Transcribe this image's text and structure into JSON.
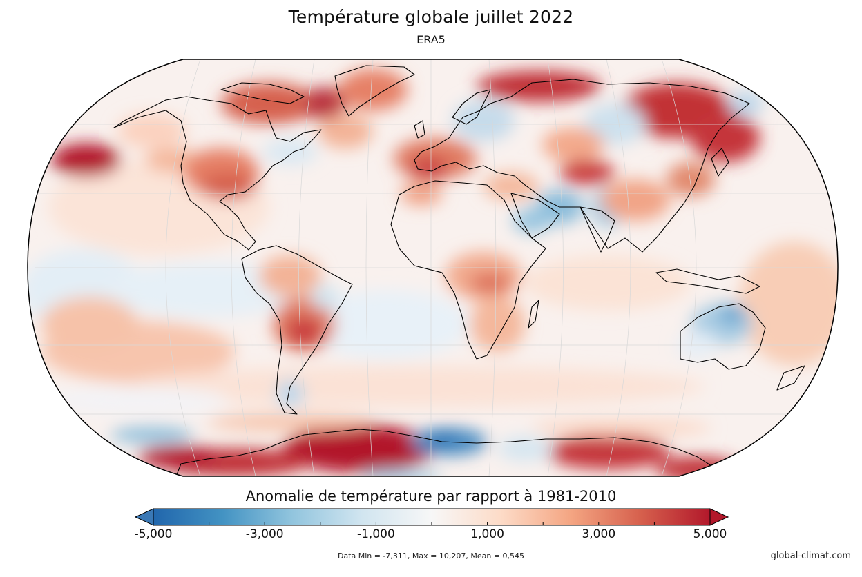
{
  "title": "Température globale juillet 2022",
  "subtitle": "ERA5",
  "map": {
    "projection": "Robinson",
    "colormap": [
      "#2166ac",
      "#4393c3",
      "#92c5de",
      "#d1e5f0",
      "#f7f7f7",
      "#fddbc7",
      "#f4a582",
      "#d6604d",
      "#b2182b"
    ],
    "ocean_base": "#f7f7f7",
    "coast_color": "#000000"
  },
  "colorbar": {
    "title": "Anomalie de température par rapport à 1981-2010",
    "range": [
      -5,
      5
    ],
    "tick_labels": [
      {
        "value": -5,
        "label": "-5,000"
      },
      {
        "value": -3,
        "label": "-3,000"
      },
      {
        "value": -1,
        "label": "-1,000"
      },
      {
        "value": 1,
        "label": "1,000"
      },
      {
        "value": 3,
        "label": "3,000"
      },
      {
        "value": 5,
        "label": "5,000"
      }
    ],
    "low_arrow_color": "#3a78b5",
    "high_arrow_color": "#b2182b"
  },
  "stats": "Data Min = -7,311, Max = 10,207, Mean = 0,545",
  "credit": "global-climat.com"
}
